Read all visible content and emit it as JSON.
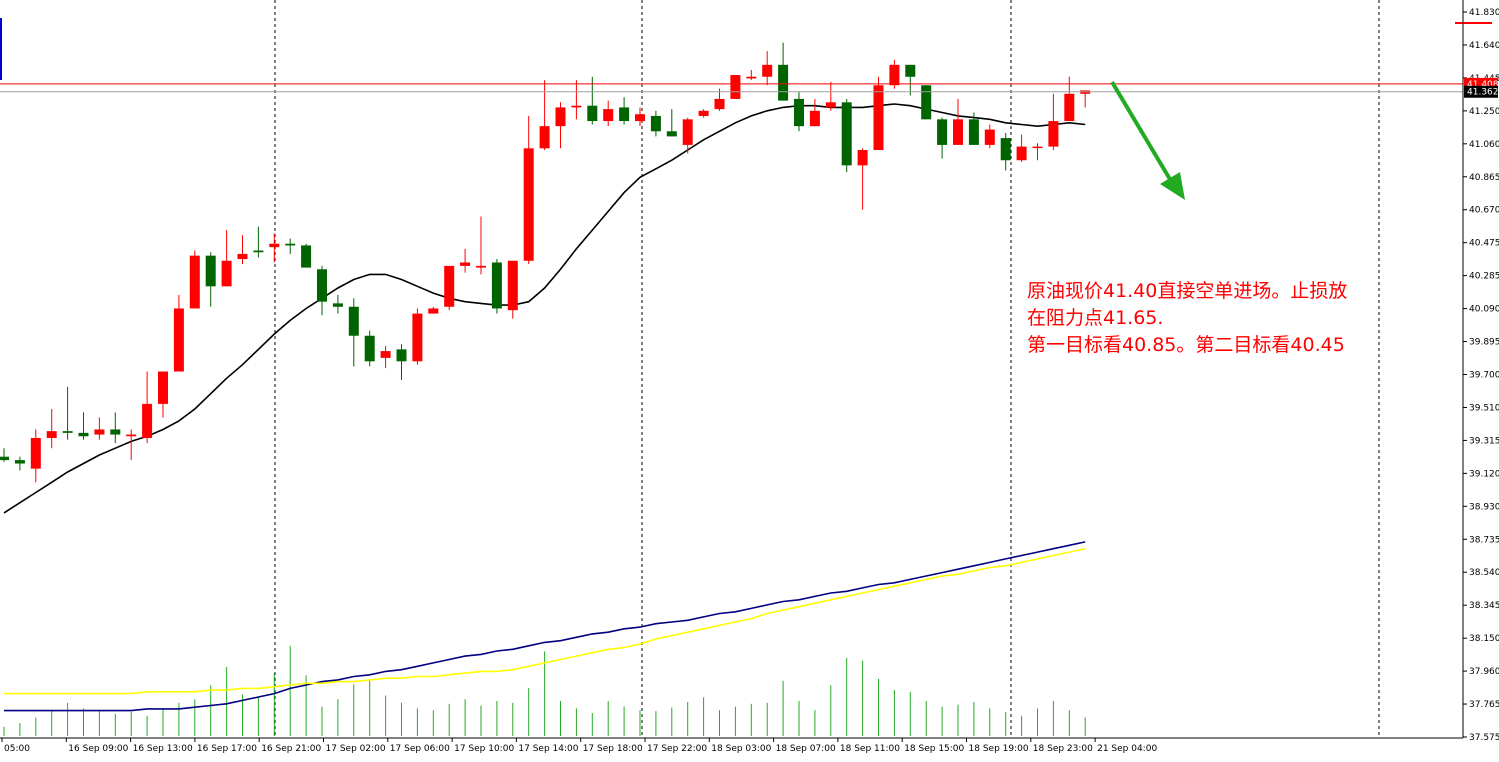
{
  "chart_data": {
    "type": "candlestick",
    "symbol": "",
    "y_axis": {
      "ticks": [
        "41.830",
        "41.640",
        "41.445",
        "41.250",
        "41.060",
        "40.865",
        "40.670",
        "40.475",
        "40.285",
        "40.090",
        "39.895",
        "39.700",
        "39.510",
        "39.315",
        "39.120",
        "38.930",
        "38.735",
        "38.540",
        "38.345",
        "38.150",
        "37.960",
        "37.765",
        "37.575"
      ],
      "range": [
        37.575,
        41.83
      ]
    },
    "x_axis": {
      "ticks": [
        "05:00",
        "16 Sep 09:00",
        "16 Sep 13:00",
        "16 Sep 17:00",
        "16 Sep 21:00",
        "17 Sep 02:00",
        "17 Sep 06:00",
        "17 Sep 10:00",
        "17 Sep 14:00",
        "17 Sep 18:00",
        "17 Sep 22:00",
        "18 Sep 03:00",
        "18 Sep 07:00",
        "18 Sep 11:00",
        "18 Sep 15:00",
        "18 Sep 19:00",
        "18 Sep 23:00",
        "21 Sep 04:00"
      ]
    },
    "price_lines": {
      "resistance": "41.408",
      "current": "41.362",
      "colors": {
        "resistance": "#ff0000",
        "current": "#a0a0a0"
      }
    },
    "candles": [
      {
        "o": 39.22,
        "h": 39.27,
        "l": 39.19,
        "c": 39.2
      },
      {
        "o": 39.2,
        "h": 39.22,
        "l": 39.14,
        "c": 39.18
      },
      {
        "o": 39.15,
        "h": 39.38,
        "l": 39.07,
        "c": 39.33
      },
      {
        "o": 39.33,
        "h": 39.5,
        "l": 39.27,
        "c": 39.37
      },
      {
        "o": 39.37,
        "h": 39.63,
        "l": 39.32,
        "c": 39.36
      },
      {
        "o": 39.36,
        "h": 39.48,
        "l": 39.32,
        "c": 39.34
      },
      {
        "o": 39.35,
        "h": 39.45,
        "l": 39.32,
        "c": 39.38
      },
      {
        "o": 39.38,
        "h": 39.48,
        "l": 39.3,
        "c": 39.35
      },
      {
        "o": 39.34,
        "h": 39.38,
        "l": 39.2,
        "c": 39.35
      },
      {
        "o": 39.33,
        "h": 39.72,
        "l": 39.3,
        "c": 39.53
      },
      {
        "o": 39.53,
        "h": 39.72,
        "l": 39.45,
        "c": 39.72
      },
      {
        "o": 39.72,
        "h": 40.17,
        "l": 39.72,
        "c": 40.09
      },
      {
        "o": 40.09,
        "h": 40.43,
        "l": 40.09,
        "c": 40.4
      },
      {
        "o": 40.4,
        "h": 40.42,
        "l": 40.1,
        "c": 40.22
      },
      {
        "o": 40.22,
        "h": 40.55,
        "l": 40.22,
        "c": 40.37
      },
      {
        "o": 40.38,
        "h": 40.52,
        "l": 40.35,
        "c": 40.41
      },
      {
        "o": 40.43,
        "h": 40.57,
        "l": 40.39,
        "c": 40.42
      },
      {
        "o": 40.45,
        "h": 40.53,
        "l": 40.36,
        "c": 40.47
      },
      {
        "o": 40.47,
        "h": 40.5,
        "l": 40.41,
        "c": 40.46
      },
      {
        "o": 40.46,
        "h": 40.47,
        "l": 40.33,
        "c": 40.33
      },
      {
        "o": 40.32,
        "h": 40.34,
        "l": 40.05,
        "c": 40.13
      },
      {
        "o": 40.12,
        "h": 40.17,
        "l": 40.06,
        "c": 40.1
      },
      {
        "o": 40.1,
        "h": 40.15,
        "l": 39.75,
        "c": 39.93
      },
      {
        "o": 39.93,
        "h": 39.96,
        "l": 39.75,
        "c": 39.78
      },
      {
        "o": 39.8,
        "h": 39.87,
        "l": 39.74,
        "c": 39.84
      },
      {
        "o": 39.85,
        "h": 39.88,
        "l": 39.67,
        "c": 39.78
      },
      {
        "o": 39.78,
        "h": 40.09,
        "l": 39.76,
        "c": 40.06
      },
      {
        "o": 40.06,
        "h": 40.1,
        "l": 40.06,
        "c": 40.09
      },
      {
        "o": 40.1,
        "h": 40.34,
        "l": 40.08,
        "c": 40.34
      },
      {
        "o": 40.34,
        "h": 40.44,
        "l": 40.3,
        "c": 40.36
      },
      {
        "o": 40.33,
        "h": 40.63,
        "l": 40.29,
        "c": 40.34
      },
      {
        "o": 40.36,
        "h": 40.38,
        "l": 40.06,
        "c": 40.09
      },
      {
        "o": 40.08,
        "h": 40.37,
        "l": 40.03,
        "c": 40.37
      },
      {
        "o": 40.37,
        "h": 41.22,
        "l": 40.35,
        "c": 41.03
      },
      {
        "o": 41.03,
        "h": 41.43,
        "l": 41.02,
        "c": 41.16
      },
      {
        "o": 41.16,
        "h": 41.3,
        "l": 41.03,
        "c": 41.27
      },
      {
        "o": 41.27,
        "h": 41.43,
        "l": 41.2,
        "c": 41.28
      },
      {
        "o": 41.28,
        "h": 41.45,
        "l": 41.17,
        "c": 41.19
      },
      {
        "o": 41.19,
        "h": 41.31,
        "l": 41.16,
        "c": 41.26
      },
      {
        "o": 41.27,
        "h": 41.33,
        "l": 41.17,
        "c": 41.19
      },
      {
        "o": 41.19,
        "h": 41.27,
        "l": 41.16,
        "c": 41.23
      },
      {
        "o": 41.22,
        "h": 41.25,
        "l": 41.1,
        "c": 41.13
      },
      {
        "o": 41.13,
        "h": 41.26,
        "l": 41.1,
        "c": 41.1
      },
      {
        "o": 41.05,
        "h": 41.21,
        "l": 41.0,
        "c": 41.2
      },
      {
        "o": 41.22,
        "h": 41.26,
        "l": 41.21,
        "c": 41.25
      },
      {
        "o": 41.26,
        "h": 41.38,
        "l": 41.25,
        "c": 41.32
      },
      {
        "o": 41.32,
        "h": 41.46,
        "l": 41.32,
        "c": 41.46
      },
      {
        "o": 41.44,
        "h": 41.49,
        "l": 41.43,
        "c": 41.45
      },
      {
        "o": 41.45,
        "h": 41.6,
        "l": 41.4,
        "c": 41.52
      },
      {
        "o": 41.52,
        "h": 41.65,
        "l": 41.31,
        "c": 41.31
      },
      {
        "o": 41.32,
        "h": 41.36,
        "l": 41.13,
        "c": 41.16
      },
      {
        "o": 41.16,
        "h": 41.32,
        "l": 41.16,
        "c": 41.25
      },
      {
        "o": 41.27,
        "h": 41.42,
        "l": 41.25,
        "c": 41.3
      },
      {
        "o": 41.3,
        "h": 41.32,
        "l": 40.89,
        "c": 40.93
      },
      {
        "o": 40.93,
        "h": 41.03,
        "l": 40.67,
        "c": 41.02
      },
      {
        "o": 41.02,
        "h": 41.45,
        "l": 41.02,
        "c": 41.4
      },
      {
        "o": 41.4,
        "h": 41.55,
        "l": 41.38,
        "c": 41.52
      },
      {
        "o": 41.52,
        "h": 41.52,
        "l": 41.34,
        "c": 41.45
      },
      {
        "o": 41.4,
        "h": 41.4,
        "l": 41.2,
        "c": 41.2
      },
      {
        "o": 41.2,
        "h": 41.21,
        "l": 40.97,
        "c": 41.05
      },
      {
        "o": 41.05,
        "h": 41.32,
        "l": 41.05,
        "c": 41.2
      },
      {
        "o": 41.2,
        "h": 41.24,
        "l": 41.05,
        "c": 41.05
      },
      {
        "o": 41.05,
        "h": 41.17,
        "l": 41.03,
        "c": 41.14
      },
      {
        "o": 41.09,
        "h": 41.12,
        "l": 40.9,
        "c": 40.96
      },
      {
        "o": 40.96,
        "h": 41.11,
        "l": 40.95,
        "c": 41.04
      },
      {
        "o": 41.04,
        "h": 41.06,
        "l": 40.96,
        "c": 41.04
      },
      {
        "o": 41.04,
        "h": 41.35,
        "l": 41.02,
        "c": 41.19
      },
      {
        "o": 41.19,
        "h": 41.45,
        "l": 41.19,
        "c": 41.35
      },
      {
        "o": 41.35,
        "h": 41.37,
        "l": 41.27,
        "c": 41.37
      }
    ],
    "moving_averages": [
      {
        "color": "#000000",
        "values": [
          38.89,
          38.95,
          39.01,
          39.07,
          39.13,
          39.18,
          39.23,
          39.27,
          39.31,
          39.34,
          39.38,
          39.43,
          39.5,
          39.59,
          39.68,
          39.76,
          39.85,
          39.94,
          40.02,
          40.09,
          40.15,
          40.21,
          40.26,
          40.29,
          40.29,
          40.26,
          40.22,
          40.18,
          40.15,
          40.13,
          40.12,
          40.11,
          40.11,
          40.13,
          40.21,
          40.32,
          40.44,
          40.55,
          40.66,
          40.77,
          40.86,
          40.91,
          40.96,
          41.02,
          41.08,
          41.13,
          41.18,
          41.22,
          41.25,
          41.27,
          41.28,
          41.28,
          41.27,
          41.27,
          41.27,
          41.28,
          41.29,
          41.28,
          41.26,
          41.24,
          41.22,
          41.21,
          41.2,
          41.18,
          41.17,
          41.16,
          41.17,
          41.18,
          41.17
        ]
      },
      {
        "color": "#000080",
        "values": [
          37.73,
          37.73,
          37.73,
          37.73,
          37.73,
          37.73,
          37.73,
          37.73,
          37.73,
          37.74,
          37.74,
          37.74,
          37.75,
          37.76,
          37.77,
          37.79,
          37.81,
          37.83,
          37.86,
          37.88,
          37.9,
          37.91,
          37.93,
          37.94,
          37.96,
          37.97,
          37.99,
          38.01,
          38.03,
          38.05,
          38.06,
          38.08,
          38.09,
          38.11,
          38.13,
          38.14,
          38.16,
          38.18,
          38.19,
          38.21,
          38.22,
          38.24,
          38.25,
          38.26,
          38.28,
          38.3,
          38.31,
          38.33,
          38.35,
          38.37,
          38.38,
          38.4,
          38.42,
          38.43,
          38.45,
          38.47,
          38.48,
          38.5,
          38.52,
          38.54,
          38.56,
          38.58,
          38.6,
          38.62,
          38.64,
          38.66,
          38.68,
          38.7,
          38.72
        ]
      },
      {
        "color": "#ffff00",
        "values": [
          37.83,
          37.83,
          37.83,
          37.83,
          37.83,
          37.83,
          37.83,
          37.83,
          37.83,
          37.84,
          37.84,
          37.84,
          37.84,
          37.85,
          37.85,
          37.86,
          37.86,
          37.87,
          37.88,
          37.89,
          37.89,
          37.9,
          37.9,
          37.91,
          37.92,
          37.92,
          37.93,
          37.93,
          37.94,
          37.95,
          37.96,
          37.96,
          37.97,
          37.99,
          38.01,
          38.03,
          38.05,
          38.07,
          38.09,
          38.1,
          38.12,
          38.15,
          38.17,
          38.19,
          38.21,
          38.23,
          38.25,
          38.27,
          38.3,
          38.32,
          38.34,
          38.36,
          38.38,
          38.4,
          38.42,
          38.44,
          38.46,
          38.48,
          38.5,
          38.52,
          38.53,
          38.55,
          38.57,
          38.58,
          38.6,
          38.62,
          38.64,
          38.66,
          38.68
        ]
      }
    ],
    "volume": [
      0.1,
      0.14,
      0.2,
      0.28,
      0.36,
      0.3,
      0.28,
      0.24,
      0.26,
      0.22,
      0.3,
      0.36,
      0.4,
      0.55,
      0.75,
      0.45,
      0.42,
      0.68,
      0.98,
      0.66,
      0.32,
      0.4,
      0.56,
      0.6,
      0.44,
      0.36,
      0.3,
      0.28,
      0.35,
      0.4,
      0.33,
      0.38,
      0.36,
      0.52,
      0.92,
      0.38,
      0.3,
      0.25,
      0.38,
      0.32,
      0.28,
      0.27,
      0.31,
      0.37,
      0.42,
      0.28,
      0.32,
      0.35,
      0.36,
      0.6,
      0.38,
      0.28,
      0.55,
      0.85,
      0.82,
      0.62,
      0.5,
      0.48,
      0.38,
      0.32,
      0.34,
      0.37,
      0.3,
      0.26,
      0.22,
      0.3,
      0.38,
      0.28,
      0.2
    ],
    "annotation": {
      "lines": [
        "原油现价41.40直接空单进场。止损放",
        "在阻力点41.65.",
        "第一目标看40.85。第二目标看40.45"
      ],
      "color": "#ff0000"
    },
    "arrow": {
      "color": "#22aa22",
      "direction": "down"
    },
    "colors": {
      "bull": "#ff0000",
      "bear": "#006400",
      "volume": "#22aa22"
    }
  }
}
